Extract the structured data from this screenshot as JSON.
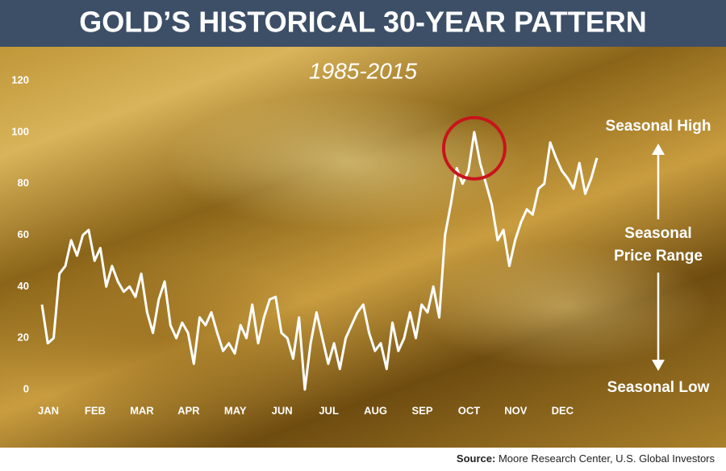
{
  "chart_data": {
    "type": "line",
    "title": "GOLD’S HISTORICAL 30-YEAR PATTERN",
    "subtitle": "1985-2015",
    "categories": [
      "JAN",
      null,
      null,
      null,
      null,
      null,
      null,
      null,
      "FEB",
      null,
      null,
      null,
      null,
      null,
      null,
      null,
      "MAR",
      null,
      null,
      null,
      null,
      null,
      null,
      null,
      "APR",
      null,
      null,
      null,
      null,
      null,
      null,
      null,
      "MAY",
      null,
      null,
      null,
      null,
      null,
      null,
      null,
      "JUN",
      null,
      null,
      null,
      null,
      null,
      null,
      null,
      "JUL",
      null,
      null,
      null,
      null,
      null,
      null,
      null,
      "AUG",
      null,
      null,
      null,
      null,
      null,
      null,
      null,
      "SEP",
      null,
      null,
      null,
      null,
      null,
      null,
      null,
      "OCT",
      null,
      null,
      null,
      null,
      null,
      null,
      null,
      "NOV",
      null,
      null,
      null,
      null,
      null,
      null,
      null,
      "DEC",
      null,
      null,
      null,
      null,
      null,
      null,
      null
    ],
    "values": [
      33,
      18,
      20,
      45,
      48,
      58,
      52,
      60,
      62,
      50,
      55,
      40,
      48,
      42,
      38,
      40,
      36,
      45,
      30,
      22,
      35,
      42,
      25,
      20,
      26,
      22,
      10,
      28,
      25,
      30,
      22,
      15,
      18,
      14,
      25,
      20,
      33,
      18,
      28,
      35,
      36,
      22,
      20,
      12,
      28,
      0,
      18,
      30,
      20,
      10,
      18,
      8,
      20,
      25,
      30,
      33,
      22,
      15,
      18,
      8,
      26,
      15,
      20,
      30,
      20,
      33,
      30,
      40,
      28,
      60,
      72,
      86,
      80,
      85,
      100,
      88,
      80,
      72,
      58,
      62,
      48,
      58,
      65,
      70,
      68,
      78,
      80,
      96,
      90,
      85,
      82,
      78,
      88,
      76,
      82,
      90
    ],
    "color": "#ffffff",
    "ylim": [
      0,
      120
    ],
    "yticks": [
      0,
      20,
      40,
      60,
      80,
      100,
      120
    ],
    "grid": false,
    "annotations": [
      "Seasonal High",
      "Seasonal",
      "Price Range",
      "Seasonal Low"
    ],
    "source_label": "Source:",
    "source_text": "Moore Research Center, U.S. Global Investors"
  }
}
